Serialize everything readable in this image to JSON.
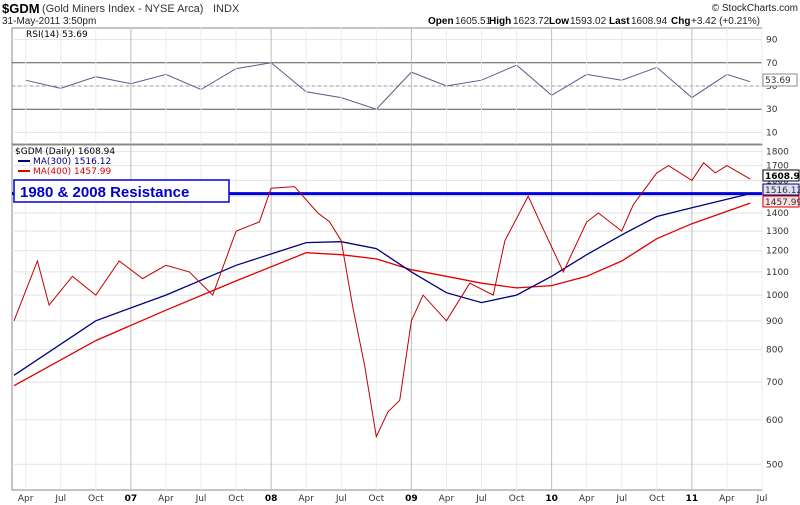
{
  "header": {
    "symbol": "$GDM",
    "name": "(Gold Miners Index - NYSE Arca)",
    "exchange": "INDX",
    "date": "31-May-2011 3:50pm",
    "open_label": "Open",
    "open": "1605.51",
    "high_label": "High",
    "high": "1623.72",
    "low_label": "Low",
    "low": "1593.02",
    "last_label": "Last",
    "last": "1608.94",
    "chg_label": "Chg",
    "chg": "+3.42 (+0.21%)",
    "watermark": "© StockCharts.com"
  },
  "colors": {
    "price": "#c00000",
    "ma300": "#000080",
    "ma400": "#e00000",
    "rsi": "#5a5a8c",
    "resistance": "#0000dd"
  },
  "chart_data": [
    {
      "type": "line",
      "panel": "RSI",
      "label": "RSI(14) 53.69",
      "current": 53.69,
      "current_label": "53.69",
      "ylim": [
        0,
        100
      ],
      "y_ticks": [
        90,
        70,
        50,
        30,
        10
      ],
      "overbought": 70,
      "oversold": 30,
      "x": [
        "2006-04",
        "2006-07",
        "2006-10",
        "2007-01",
        "2007-04",
        "2007-07",
        "2007-10",
        "2008-01",
        "2008-04",
        "2008-07",
        "2008-10",
        "2009-01",
        "2009-04",
        "2009-07",
        "2009-10",
        "2010-01",
        "2010-04",
        "2010-07",
        "2010-10",
        "2011-01",
        "2011-04",
        "2011-05-31"
      ],
      "values": [
        55,
        48,
        58,
        52,
        60,
        47,
        65,
        70,
        45,
        40,
        30,
        62,
        50,
        55,
        68,
        42,
        60,
        55,
        66,
        40,
        60,
        53.69
      ]
    },
    {
      "type": "line",
      "panel": "Price",
      "title": "$GDM (Daily) 1608.94",
      "scale": "log",
      "ylim": [
        450,
        1850
      ],
      "y_ticks": [
        500,
        600,
        700,
        800,
        900,
        1000,
        1100,
        1200,
        1300,
        1400,
        1500,
        1600,
        1700,
        1800
      ],
      "x_ticks": [
        "Apr",
        "Jul",
        "Oct",
        "07",
        "Apr",
        "Jul",
        "Oct",
        "08",
        "Apr",
        "Jul",
        "Oct",
        "09",
        "Apr",
        "Jul",
        "Oct",
        "10",
        "Apr",
        "Jul",
        "Oct",
        "11",
        "Apr",
        "Jul"
      ],
      "annotation": "1980 & 2008 Resistance",
      "resistance_level": 1516,
      "series": [
        {
          "name": "$GDM (Daily) 1608.94",
          "color": "#c00000",
          "x": [
            "2006-03",
            "2006-05",
            "2006-06",
            "2006-08",
            "2006-10",
            "2006-12",
            "2007-02",
            "2007-04",
            "2007-06",
            "2007-08",
            "2007-10",
            "2007-12",
            "2008-01",
            "2008-03",
            "2008-05",
            "2008-06",
            "2008-07",
            "2008-08",
            "2008-09",
            "2008-10",
            "2008-11",
            "2008-12",
            "2009-01",
            "2009-02",
            "2009-04",
            "2009-06",
            "2009-08",
            "2009-09",
            "2009-11",
            "2009-12",
            "2010-02",
            "2010-04",
            "2010-05",
            "2010-07",
            "2010-08",
            "2010-10",
            "2010-11",
            "2011-01",
            "2011-02",
            "2011-03",
            "2011-04",
            "2011-05-31"
          ],
          "values": [
            900,
            1150,
            960,
            1080,
            1000,
            1150,
            1070,
            1130,
            1100,
            1000,
            1300,
            1350,
            1550,
            1560,
            1400,
            1350,
            1250,
            950,
            750,
            560,
            620,
            650,
            900,
            1000,
            900,
            1050,
            1000,
            1250,
            1500,
            1350,
            1100,
            1350,
            1400,
            1300,
            1450,
            1650,
            1700,
            1600,
            1720,
            1650,
            1700,
            1608.94
          ]
        },
        {
          "name": "MA(300) 1516.12",
          "color": "#000080",
          "current_label": "1516.12",
          "x": [
            "2006-03",
            "2006-10",
            "2007-04",
            "2007-10",
            "2008-04",
            "2008-07",
            "2008-10",
            "2009-01",
            "2009-04",
            "2009-07",
            "2009-10",
            "2010-01",
            "2010-04",
            "2010-07",
            "2010-10",
            "2011-01",
            "2011-05-31"
          ],
          "values": [
            720,
            900,
            1000,
            1130,
            1240,
            1245,
            1210,
            1100,
            1010,
            970,
            1000,
            1080,
            1180,
            1280,
            1380,
            1430,
            1516.12
          ]
        },
        {
          "name": "MA(400) 1457.99",
          "color": "#e00000",
          "current_label": "1457.99",
          "x": [
            "2006-03",
            "2006-10",
            "2007-04",
            "2007-10",
            "2008-04",
            "2008-07",
            "2008-10",
            "2009-01",
            "2009-04",
            "2009-07",
            "2009-10",
            "2010-01",
            "2010-04",
            "2010-07",
            "2010-10",
            "2011-01",
            "2011-05-31"
          ],
          "values": [
            690,
            830,
            940,
            1060,
            1190,
            1180,
            1160,
            1110,
            1080,
            1050,
            1030,
            1040,
            1080,
            1150,
            1260,
            1340,
            1457.99
          ]
        }
      ],
      "last_label": "1608.94"
    }
  ]
}
